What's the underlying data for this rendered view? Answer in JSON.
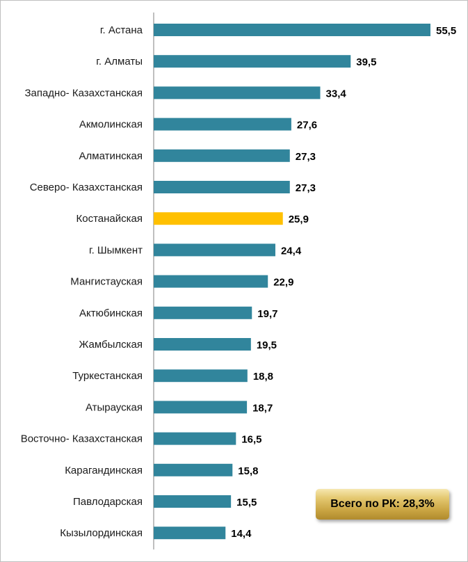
{
  "chart_data": {
    "type": "bar",
    "orientation": "horizontal",
    "categories": [
      "г. Астана",
      "г. Алматы",
      "Западно- Казахстанская",
      "Акмолинская",
      "Алматинская",
      "Северо- Казахстанская",
      "Костанайская",
      "г. Шымкент",
      "Мангистауская",
      "Актюбинская",
      "Жамбылская",
      "Туркестанская",
      "Атырауская",
      "Восточно- Казахстанская",
      "Карагандинская",
      "Павлодарская",
      "Кызылординская"
    ],
    "values": [
      55.5,
      39.5,
      33.4,
      27.6,
      27.3,
      27.3,
      25.9,
      24.4,
      22.9,
      19.7,
      19.5,
      18.8,
      18.7,
      16.5,
      15.8,
      15.5,
      14.4
    ],
    "value_labels": [
      "55,5",
      "39,5",
      "33,4",
      "27,6",
      "27,3",
      "27,3",
      "25,9",
      "24,4",
      "22,9",
      "19,7",
      "19,5",
      "18,8",
      "18,7",
      "16,5",
      "15,8",
      "15,5",
      "14,4"
    ],
    "highlight_category": "Костанайская",
    "colors": {
      "bar": "#31859c",
      "highlight": "#ffc000",
      "axis": "#7f7f7f"
    },
    "xlim": [
      0,
      55.5
    ],
    "grid": false,
    "legend": "none"
  },
  "total_badge": {
    "text": "Всего по РК: 28,3%"
  }
}
